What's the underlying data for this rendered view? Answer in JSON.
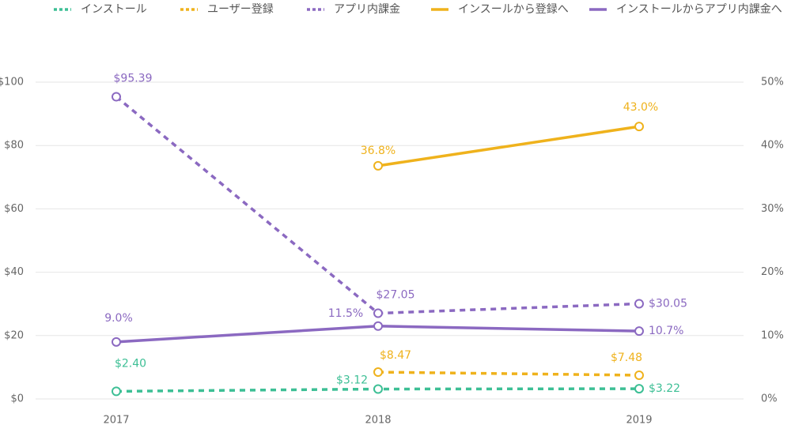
{
  "chart_data": {
    "type": "line",
    "categories": [
      "2017",
      "2018",
      "2019"
    ],
    "series": [
      {
        "name": "インストール",
        "color": "#3dbf95",
        "style": "dashed",
        "axis": "y",
        "values": [
          2.4,
          3.12,
          3.22
        ],
        "value_labels": [
          "$2.40",
          "$3.12",
          "$3.22"
        ]
      },
      {
        "name": "ユーザー登録",
        "color": "#efb21c",
        "style": "dashed",
        "axis": "y",
        "values": [
          null,
          8.47,
          7.48
        ],
        "value_labels": [
          null,
          "$8.47",
          "$7.48"
        ]
      },
      {
        "name": "アプリ内課金",
        "color": "#8b69c1",
        "style": "dashed",
        "axis": "y",
        "values": [
          95.39,
          27.05,
          30.05
        ],
        "value_labels": [
          "$95.39",
          "$27.05",
          "$30.05"
        ]
      },
      {
        "name": "インスールから登録へ",
        "color": "#efb21c",
        "style": "solid",
        "axis": "y2",
        "values": [
          null,
          36.8,
          43.0
        ],
        "value_labels": [
          null,
          "36.8%",
          "43.0%"
        ]
      },
      {
        "name": "インストールからアプリ内課金へ",
        "color": "#8b69c1",
        "style": "solid",
        "axis": "y2",
        "values": [
          9.0,
          11.5,
          10.7
        ],
        "value_labels": [
          "9.0%",
          "11.5%",
          "10.7%"
        ]
      }
    ],
    "ylim": [
      0,
      100
    ],
    "yticks": [
      {
        "value": 0,
        "label": "$0"
      },
      {
        "value": 20,
        "label": "$20"
      },
      {
        "value": 40,
        "label": "$40"
      },
      {
        "value": 60,
        "label": "$60"
      },
      {
        "value": 80,
        "label": "$80"
      },
      {
        "value": 100,
        "label": "$100"
      }
    ],
    "y2lim": [
      0,
      50
    ],
    "y2ticks": [
      {
        "value": 0,
        "label": "0%"
      },
      {
        "value": 10,
        "label": "10%"
      },
      {
        "value": 20,
        "label": "20%"
      },
      {
        "value": 30,
        "label": "30%"
      },
      {
        "value": 40,
        "label": "40%"
      },
      {
        "value": 50,
        "label": "50%"
      }
    ],
    "grid": true,
    "legend": "top"
  }
}
